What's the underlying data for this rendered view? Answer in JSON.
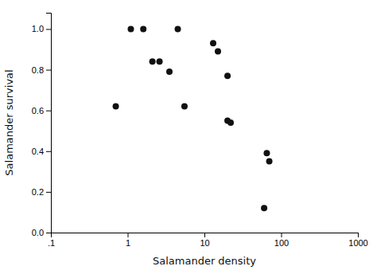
{
  "chart_data": {
    "type": "scatter",
    "x": [
      0.7,
      1.1,
      1.6,
      2.1,
      2.6,
      3.5,
      5.5,
      4.5,
      13,
      15,
      20,
      20,
      22,
      65,
      70,
      60
    ],
    "y": [
      0.62,
      1.0,
      1.0,
      0.84,
      0.84,
      0.79,
      0.62,
      1.0,
      0.93,
      0.89,
      0.77,
      0.55,
      0.54,
      0.39,
      0.35,
      0.12
    ],
    "xlabel": "Salamander density",
    "ylabel": "Salamander survival",
    "xlim": [
      0.1,
      1000
    ],
    "ylim": [
      0.0,
      1.08
    ],
    "xticks": [
      {
        "value": 0.1,
        "label": ".1"
      },
      1,
      10,
      100,
      1000
    ],
    "yticks": [
      {
        "value": 0.0,
        "label": "0.0"
      },
      0.2,
      0.4,
      0.6,
      0.8,
      {
        "value": 1.0,
        "label": "1.0"
      }
    ],
    "log": "x",
    "color": "#111111",
    "marker": "circle"
  }
}
